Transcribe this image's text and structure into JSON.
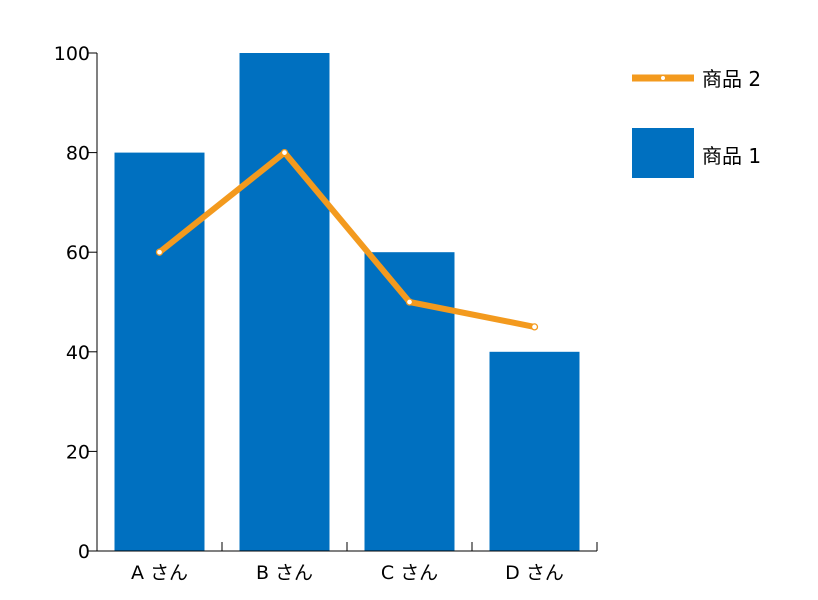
{
  "chart_data": {
    "type": "bar",
    "categories": [
      "A さん",
      "B さん",
      "C さん",
      "D さん"
    ],
    "series": [
      {
        "name": "商品 1",
        "type": "bar",
        "values": [
          80,
          100,
          60,
          40
        ],
        "color": "#0070C0"
      },
      {
        "name": "商品 2",
        "type": "line",
        "values": [
          60,
          80,
          50,
          45
        ],
        "color": "#F39A1E"
      }
    ],
    "ylim": [
      0,
      100
    ],
    "yticks": [
      0,
      20,
      40,
      60,
      80,
      100
    ],
    "ytick_labels": [
      "0",
      "20",
      "40",
      "60",
      "80",
      "100"
    ],
    "grid": false,
    "legend_position": "top-right"
  }
}
